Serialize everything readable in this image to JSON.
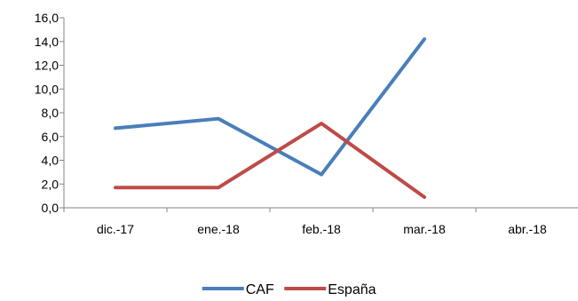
{
  "chart_data": {
    "type": "line",
    "categories": [
      "dic.-17",
      "ene.-18",
      "feb.-18",
      "mar.-18",
      "abr.-18"
    ],
    "ylim": [
      0,
      16
    ],
    "yticks": [
      0,
      2,
      4,
      6,
      8,
      10,
      12,
      14,
      16
    ],
    "ytick_labels": [
      "0,0",
      "2,0",
      "4,0",
      "6,0",
      "8,0",
      "10,0",
      "12,0",
      "14,0",
      "16,0"
    ],
    "grid": false,
    "legend_position": "bottom",
    "series": [
      {
        "name": "CAF",
        "color": "#4a7ebb",
        "values": [
          6.7,
          7.5,
          2.8,
          14.2,
          null
        ]
      },
      {
        "name": "España",
        "color": "#be4b48",
        "values": [
          1.7,
          1.7,
          7.1,
          0.9,
          null
        ]
      }
    ]
  }
}
